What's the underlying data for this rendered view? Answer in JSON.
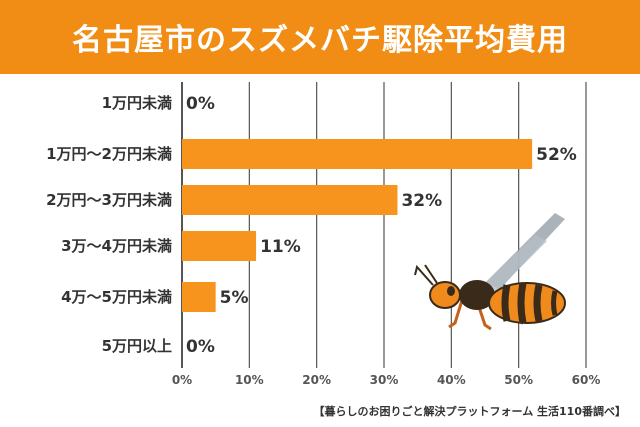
{
  "chart_data": {
    "type": "bar",
    "orientation": "horizontal",
    "title": "名古屋市のスズメバチ駆除平均費用",
    "categories": [
      "1万円未満",
      "1万円〜2万円未満",
      "2万円〜3万円未満",
      "3万〜4万円未満",
      "4万〜5万円未満",
      "5万円以上"
    ],
    "values": [
      0,
      52,
      32,
      11,
      5,
      0
    ],
    "value_labels": [
      "0%",
      "52%",
      "32%",
      "11%",
      "5%",
      "0%"
    ],
    "xlim": [
      0,
      60
    ],
    "xticks": [
      0,
      10,
      20,
      30,
      40,
      50,
      60
    ],
    "xtick_labels": [
      "0%",
      "10%",
      "20%",
      "30%",
      "40%",
      "50%",
      "60%"
    ],
    "xlabel": "",
    "ylabel": "",
    "grid": true,
    "bar_color": "#f7941d"
  },
  "colors": {
    "title_bg": "#f18d14",
    "title_text": "#ffffff",
    "grid": "#555555"
  },
  "source_text": "【暮らしのお困りごと解決プラットフォーム 生活110番調べ】",
  "illustration": "hornet-icon"
}
